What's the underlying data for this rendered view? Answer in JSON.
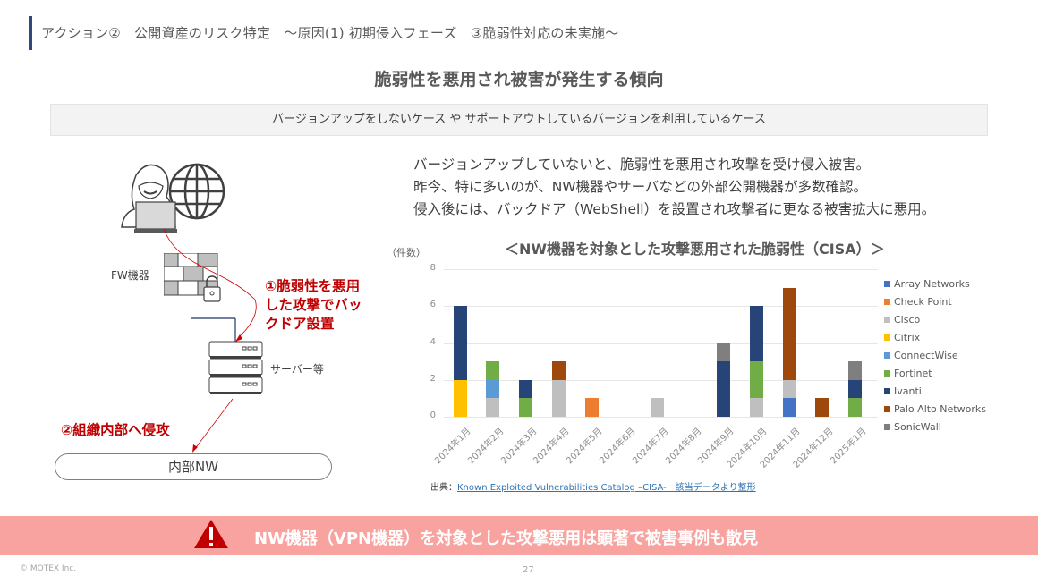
{
  "header": {
    "title": "アクション②　公開資産のリスク特定　～原因(1) 初期侵入フェーズ　③脆弱性対応の未実施～"
  },
  "main_title": "脆弱性を悪用され被害が発生する傾向",
  "case_box": "バージョンアップをしないケース や サポートアウトしているバージョンを利用しているケース",
  "description": [
    "バージョンアップしていないと、脆弱性を悪用され攻撃を受け侵入被害。",
    "昨今、特に多いのが、NW機器やサーバなどの外部公開機器が多数確認。",
    "侵入後には、バックドア（WebShell）を設置され攻撃者に更なる被害拡大に悪用。"
  ],
  "diagram": {
    "fw_label": "FW機器",
    "server_label": "サーバー等",
    "annotation1": [
      "①脆弱性を悪用",
      "した攻撃でバッ",
      "クドア設置"
    ],
    "annotation2": "②組織内部へ侵攻",
    "internal_nw": "内部NW",
    "icons": [
      "hacker-icon",
      "globe-icon",
      "firewall-icon",
      "lock-icon",
      "server-icon"
    ]
  },
  "chart_data": {
    "type": "bar",
    "stacked": true,
    "title": "＜NW機器を対象とした攻撃悪用された脆弱性（CISA）＞",
    "ylabel": "（件数）",
    "xlabel": "",
    "ylim": [
      0,
      8
    ],
    "yticks": [
      0,
      2,
      4,
      6,
      8
    ],
    "grid": true,
    "legend_position": "right",
    "categories": [
      "2024年1月",
      "2024年2月",
      "2024年3月",
      "2024年4月",
      "2024年5月",
      "2024年6月",
      "2024年7月",
      "2024年8月",
      "2024年9月",
      "2024年10月",
      "2024年11月",
      "2024年12月",
      "2025年1月"
    ],
    "series": [
      {
        "name": "Array Networks",
        "color": "#4472c4",
        "values": [
          0,
          0,
          0,
          0,
          0,
          0,
          0,
          0,
          0,
          0,
          1,
          0,
          0
        ]
      },
      {
        "name": "Check Point",
        "color": "#ed7d31",
        "values": [
          0,
          0,
          0,
          0,
          1,
          0,
          0,
          0,
          0,
          0,
          0,
          0,
          0
        ]
      },
      {
        "name": "Cisco",
        "color": "#bfbfbf",
        "values": [
          0,
          1,
          0,
          2,
          0,
          0,
          1,
          0,
          0,
          1,
          1,
          0,
          0
        ]
      },
      {
        "name": "Citrix",
        "color": "#ffc000",
        "values": [
          2,
          0,
          0,
          0,
          0,
          0,
          0,
          0,
          0,
          0,
          0,
          0,
          0
        ]
      },
      {
        "name": "ConnectWise",
        "color": "#5b9bd5",
        "values": [
          0,
          1,
          0,
          0,
          0,
          0,
          0,
          0,
          0,
          0,
          0,
          0,
          0
        ]
      },
      {
        "name": "Fortinet",
        "color": "#70ad47",
        "values": [
          0,
          1,
          1,
          0,
          0,
          0,
          0,
          0,
          0,
          2,
          0,
          0,
          1
        ]
      },
      {
        "name": "Ivanti",
        "color": "#264478",
        "values": [
          4,
          0,
          1,
          0,
          0,
          0,
          0,
          0,
          3,
          3,
          0,
          0,
          1
        ]
      },
      {
        "name": "Palo Alto Networks",
        "color": "#9e480e",
        "values": [
          0,
          0,
          0,
          1,
          0,
          0,
          0,
          0,
          0,
          0,
          5,
          1,
          0
        ]
      },
      {
        "name": "SonicWall",
        "color": "#7f7f7f",
        "values": [
          0,
          0,
          0,
          0,
          0,
          0,
          0,
          0,
          1,
          0,
          0,
          0,
          1
        ]
      }
    ]
  },
  "source": {
    "prefix": "出典：",
    "link_text": "Known Exploited Vulnerabilities Catalog –CISA-　該当データより整形"
  },
  "banner": {
    "text": "NW機器（VPN機器）を対象とした攻撃悪用は顕著で被害事例も散見",
    "icon": "warning-icon",
    "bg_color": "#f8a39f",
    "icon_color": "#c00000"
  },
  "footer": {
    "copyright": "© MOTEX Inc.",
    "page": "27"
  }
}
